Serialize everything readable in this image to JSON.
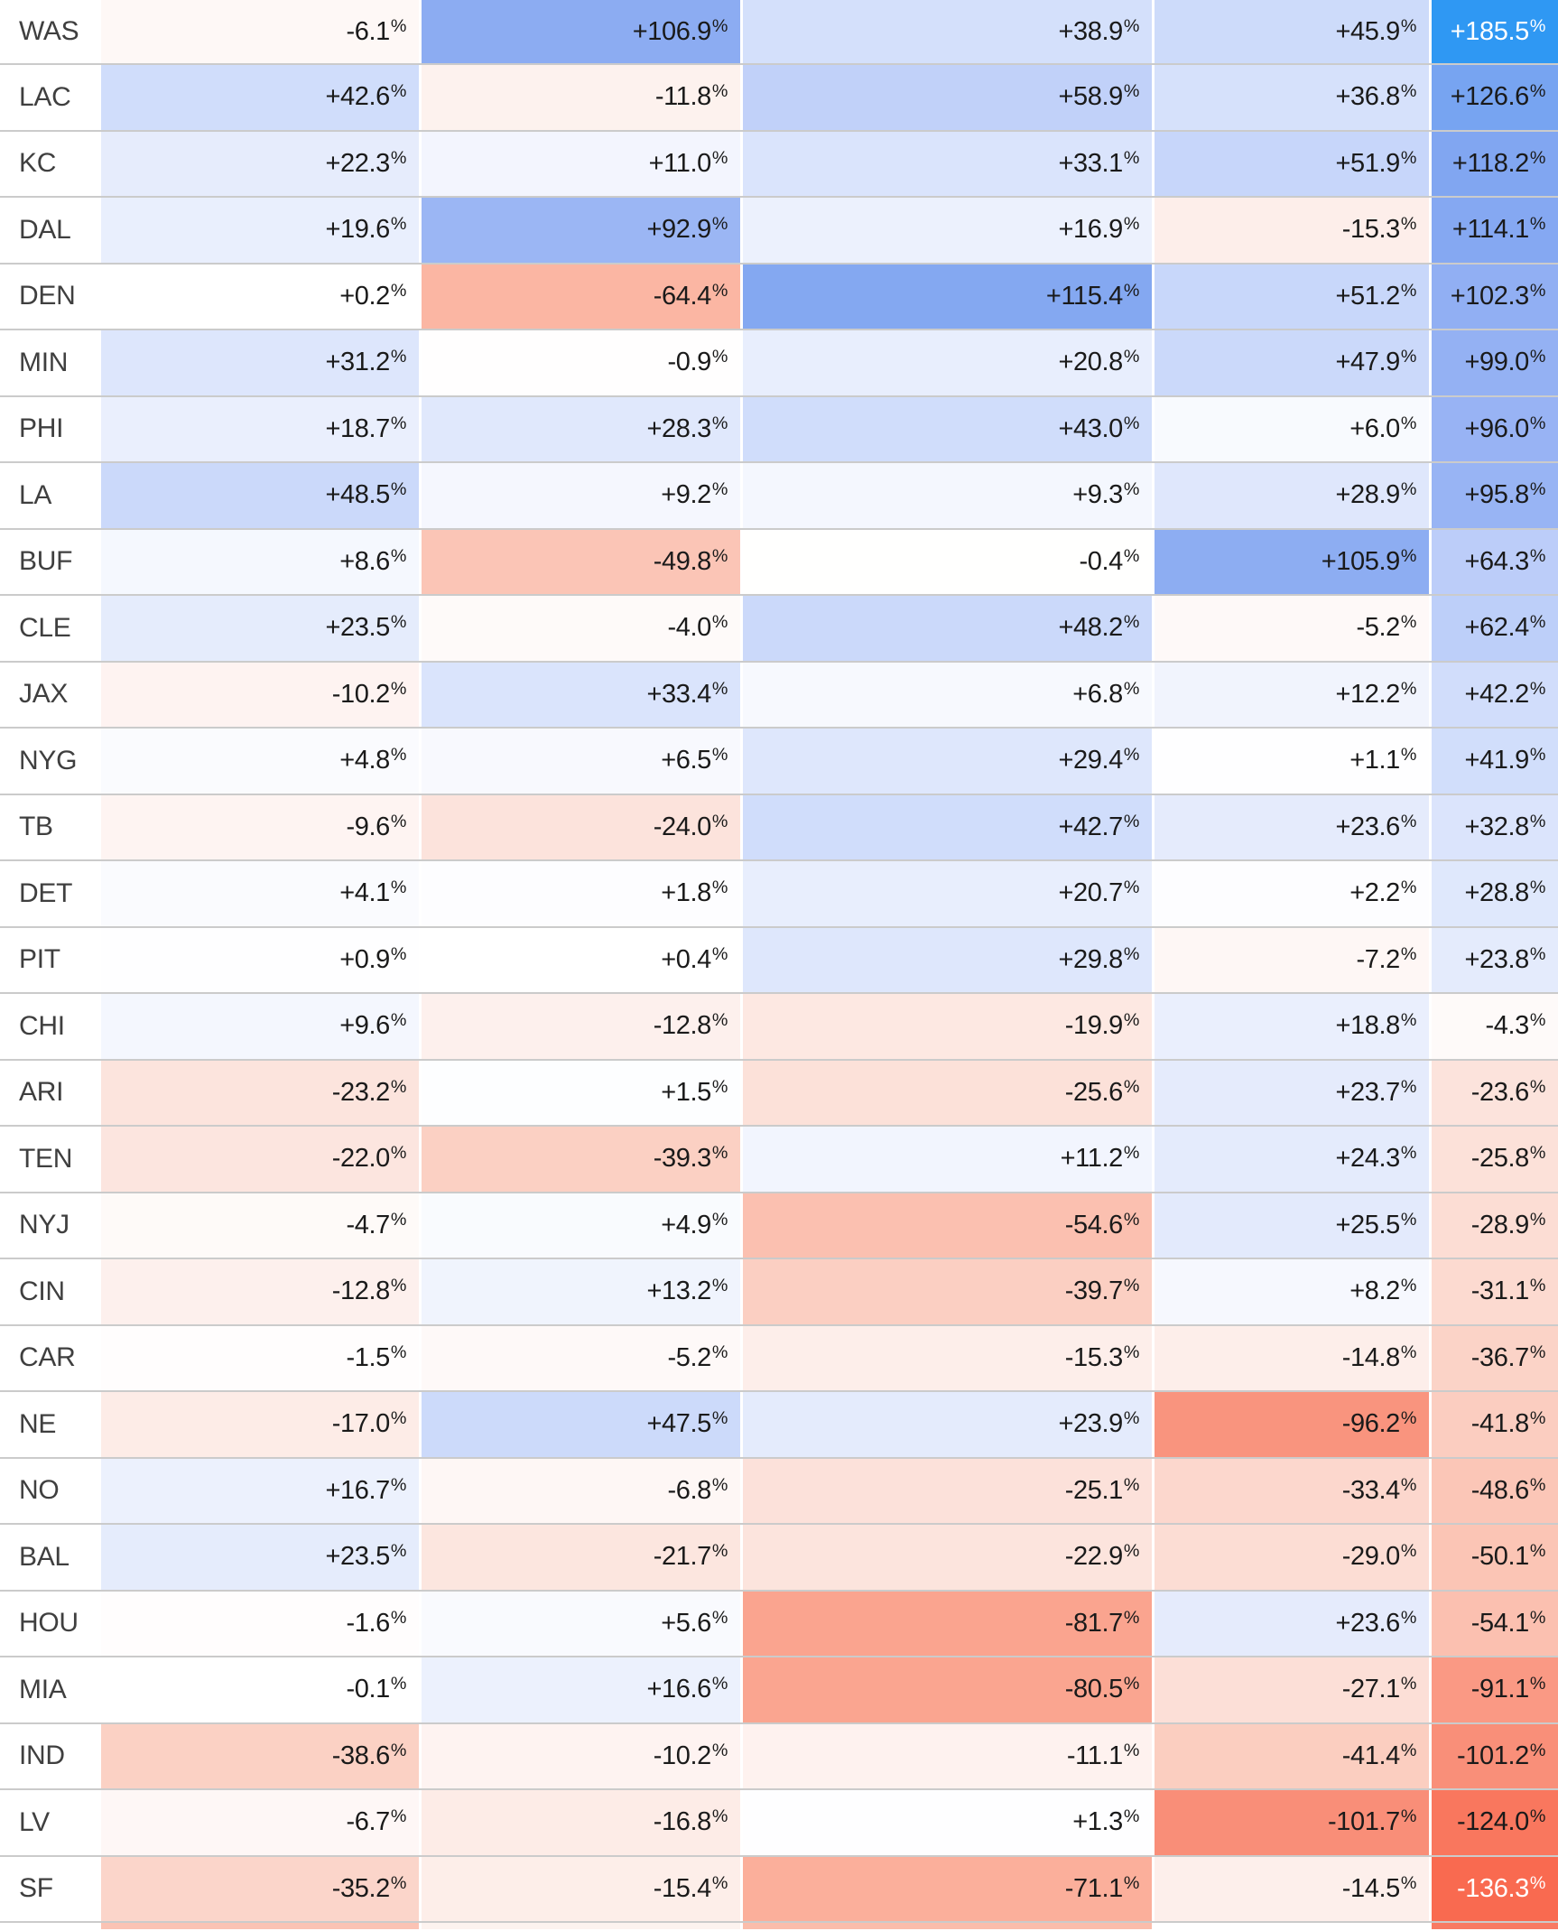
{
  "chart_data": {
    "type": "heatmap",
    "title": "",
    "description": "Team table with five percentage columns, diverging blue (positive) / red (negative) conditional-format cell backgrounds; column headers not visible (cropped screenshot).",
    "unit": "%",
    "value_format": "explicit sign, one decimal place, trailing raised % sign",
    "columns": {
      "count": 5,
      "headers_visible": false
    },
    "rows": [
      {
        "team": "WAS",
        "values": [
          -6.1,
          106.9,
          38.9,
          45.9,
          185.5
        ]
      },
      {
        "team": "LAC",
        "values": [
          42.6,
          -11.8,
          58.9,
          36.8,
          126.6
        ]
      },
      {
        "team": "KC",
        "values": [
          22.3,
          11.0,
          33.1,
          51.9,
          118.2
        ]
      },
      {
        "team": "DAL",
        "values": [
          19.6,
          92.9,
          16.9,
          -15.3,
          114.1
        ]
      },
      {
        "team": "DEN",
        "values": [
          0.2,
          -64.4,
          115.4,
          51.2,
          102.3
        ]
      },
      {
        "team": "MIN",
        "values": [
          31.2,
          -0.9,
          20.8,
          47.9,
          99.0
        ]
      },
      {
        "team": "PHI",
        "values": [
          18.7,
          28.3,
          43.0,
          6.0,
          96.0
        ]
      },
      {
        "team": "LA",
        "values": [
          48.5,
          9.2,
          9.3,
          28.9,
          95.8
        ]
      },
      {
        "team": "BUF",
        "values": [
          8.6,
          -49.8,
          -0.4,
          105.9,
          64.3
        ]
      },
      {
        "team": "CLE",
        "values": [
          23.5,
          -4.0,
          48.2,
          -5.2,
          62.4
        ]
      },
      {
        "team": "JAX",
        "values": [
          -10.2,
          33.4,
          6.8,
          12.2,
          42.2
        ]
      },
      {
        "team": "NYG",
        "values": [
          4.8,
          6.5,
          29.4,
          1.1,
          41.9
        ]
      },
      {
        "team": "TB",
        "values": [
          -9.6,
          -24.0,
          42.7,
          23.6,
          32.8
        ]
      },
      {
        "team": "DET",
        "values": [
          4.1,
          1.8,
          20.7,
          2.2,
          28.8
        ]
      },
      {
        "team": "PIT",
        "values": [
          0.9,
          0.4,
          29.8,
          -7.2,
          23.8
        ]
      },
      {
        "team": "CHI",
        "values": [
          9.6,
          -12.8,
          -19.9,
          18.8,
          -4.3
        ]
      },
      {
        "team": "ARI",
        "values": [
          -23.2,
          1.5,
          -25.6,
          23.7,
          -23.6
        ]
      },
      {
        "team": "TEN",
        "values": [
          -22.0,
          -39.3,
          11.2,
          24.3,
          -25.8
        ]
      },
      {
        "team": "NYJ",
        "values": [
          -4.7,
          4.9,
          -54.6,
          25.5,
          -28.9
        ]
      },
      {
        "team": "CIN",
        "values": [
          -12.8,
          13.2,
          -39.7,
          8.2,
          -31.1
        ]
      },
      {
        "team": "CAR",
        "values": [
          -1.5,
          -5.2,
          -15.3,
          -14.8,
          -36.7
        ]
      },
      {
        "team": "NE",
        "values": [
          -17.0,
          47.5,
          23.9,
          -96.2,
          -41.8
        ]
      },
      {
        "team": "NO",
        "values": [
          16.7,
          -6.8,
          -25.1,
          -33.4,
          -48.6
        ]
      },
      {
        "team": "BAL",
        "values": [
          23.5,
          -21.7,
          -22.9,
          -29.0,
          -50.1
        ]
      },
      {
        "team": "HOU",
        "values": [
          -1.6,
          5.6,
          -81.7,
          23.6,
          -54.1
        ]
      },
      {
        "team": "MIA",
        "values": [
          -0.1,
          16.6,
          -80.5,
          -27.1,
          -91.1
        ]
      },
      {
        "team": "IND",
        "values": [
          -38.6,
          -10.2,
          -11.1,
          -41.4,
          -101.2
        ]
      },
      {
        "team": "LV",
        "values": [
          -6.7,
          -16.8,
          1.3,
          -101.7,
          -124.0
        ]
      },
      {
        "team": "SF",
        "values": [
          -35.2,
          -15.4,
          -71.1,
          -14.5,
          -136.3
        ]
      }
    ],
    "colors": {
      "positive_scale": [
        [
          0,
          "#ffffff"
        ],
        [
          15,
          "#eef2fd"
        ],
        [
          40,
          "#d3dffb"
        ],
        [
          70,
          "#b6c9f8"
        ],
        [
          100,
          "#93b0f3"
        ],
        [
          120,
          "#7fa5f1"
        ],
        [
          190,
          "#2997f3"
        ]
      ],
      "negative_scale": [
        [
          0,
          "#ffffff"
        ],
        [
          15,
          "#fdeeea"
        ],
        [
          40,
          "#fbcfc2"
        ],
        [
          70,
          "#fbb09c"
        ],
        [
          100,
          "#f9907a"
        ],
        [
          140,
          "#f9664c"
        ]
      ],
      "white_text_threshold": 130,
      "value_text": "#1a1a1a",
      "extreme_value_text": "#ffffff",
      "team_text": "#3f3f3f",
      "row_divider": "#cbcbcb",
      "column_gap": "#ffffff"
    },
    "partial_bottom_row_colors": [
      "#ffffff",
      "#fbc3b4",
      "#fdf3ef",
      "#fbbdab",
      "#ffffff",
      "#f87a63"
    ],
    "layout_hints": {
      "alignment": "team labels left-aligned, values right-aligned",
      "first_row_cropped_top": true,
      "last_row_partially_visible": true
    }
  }
}
